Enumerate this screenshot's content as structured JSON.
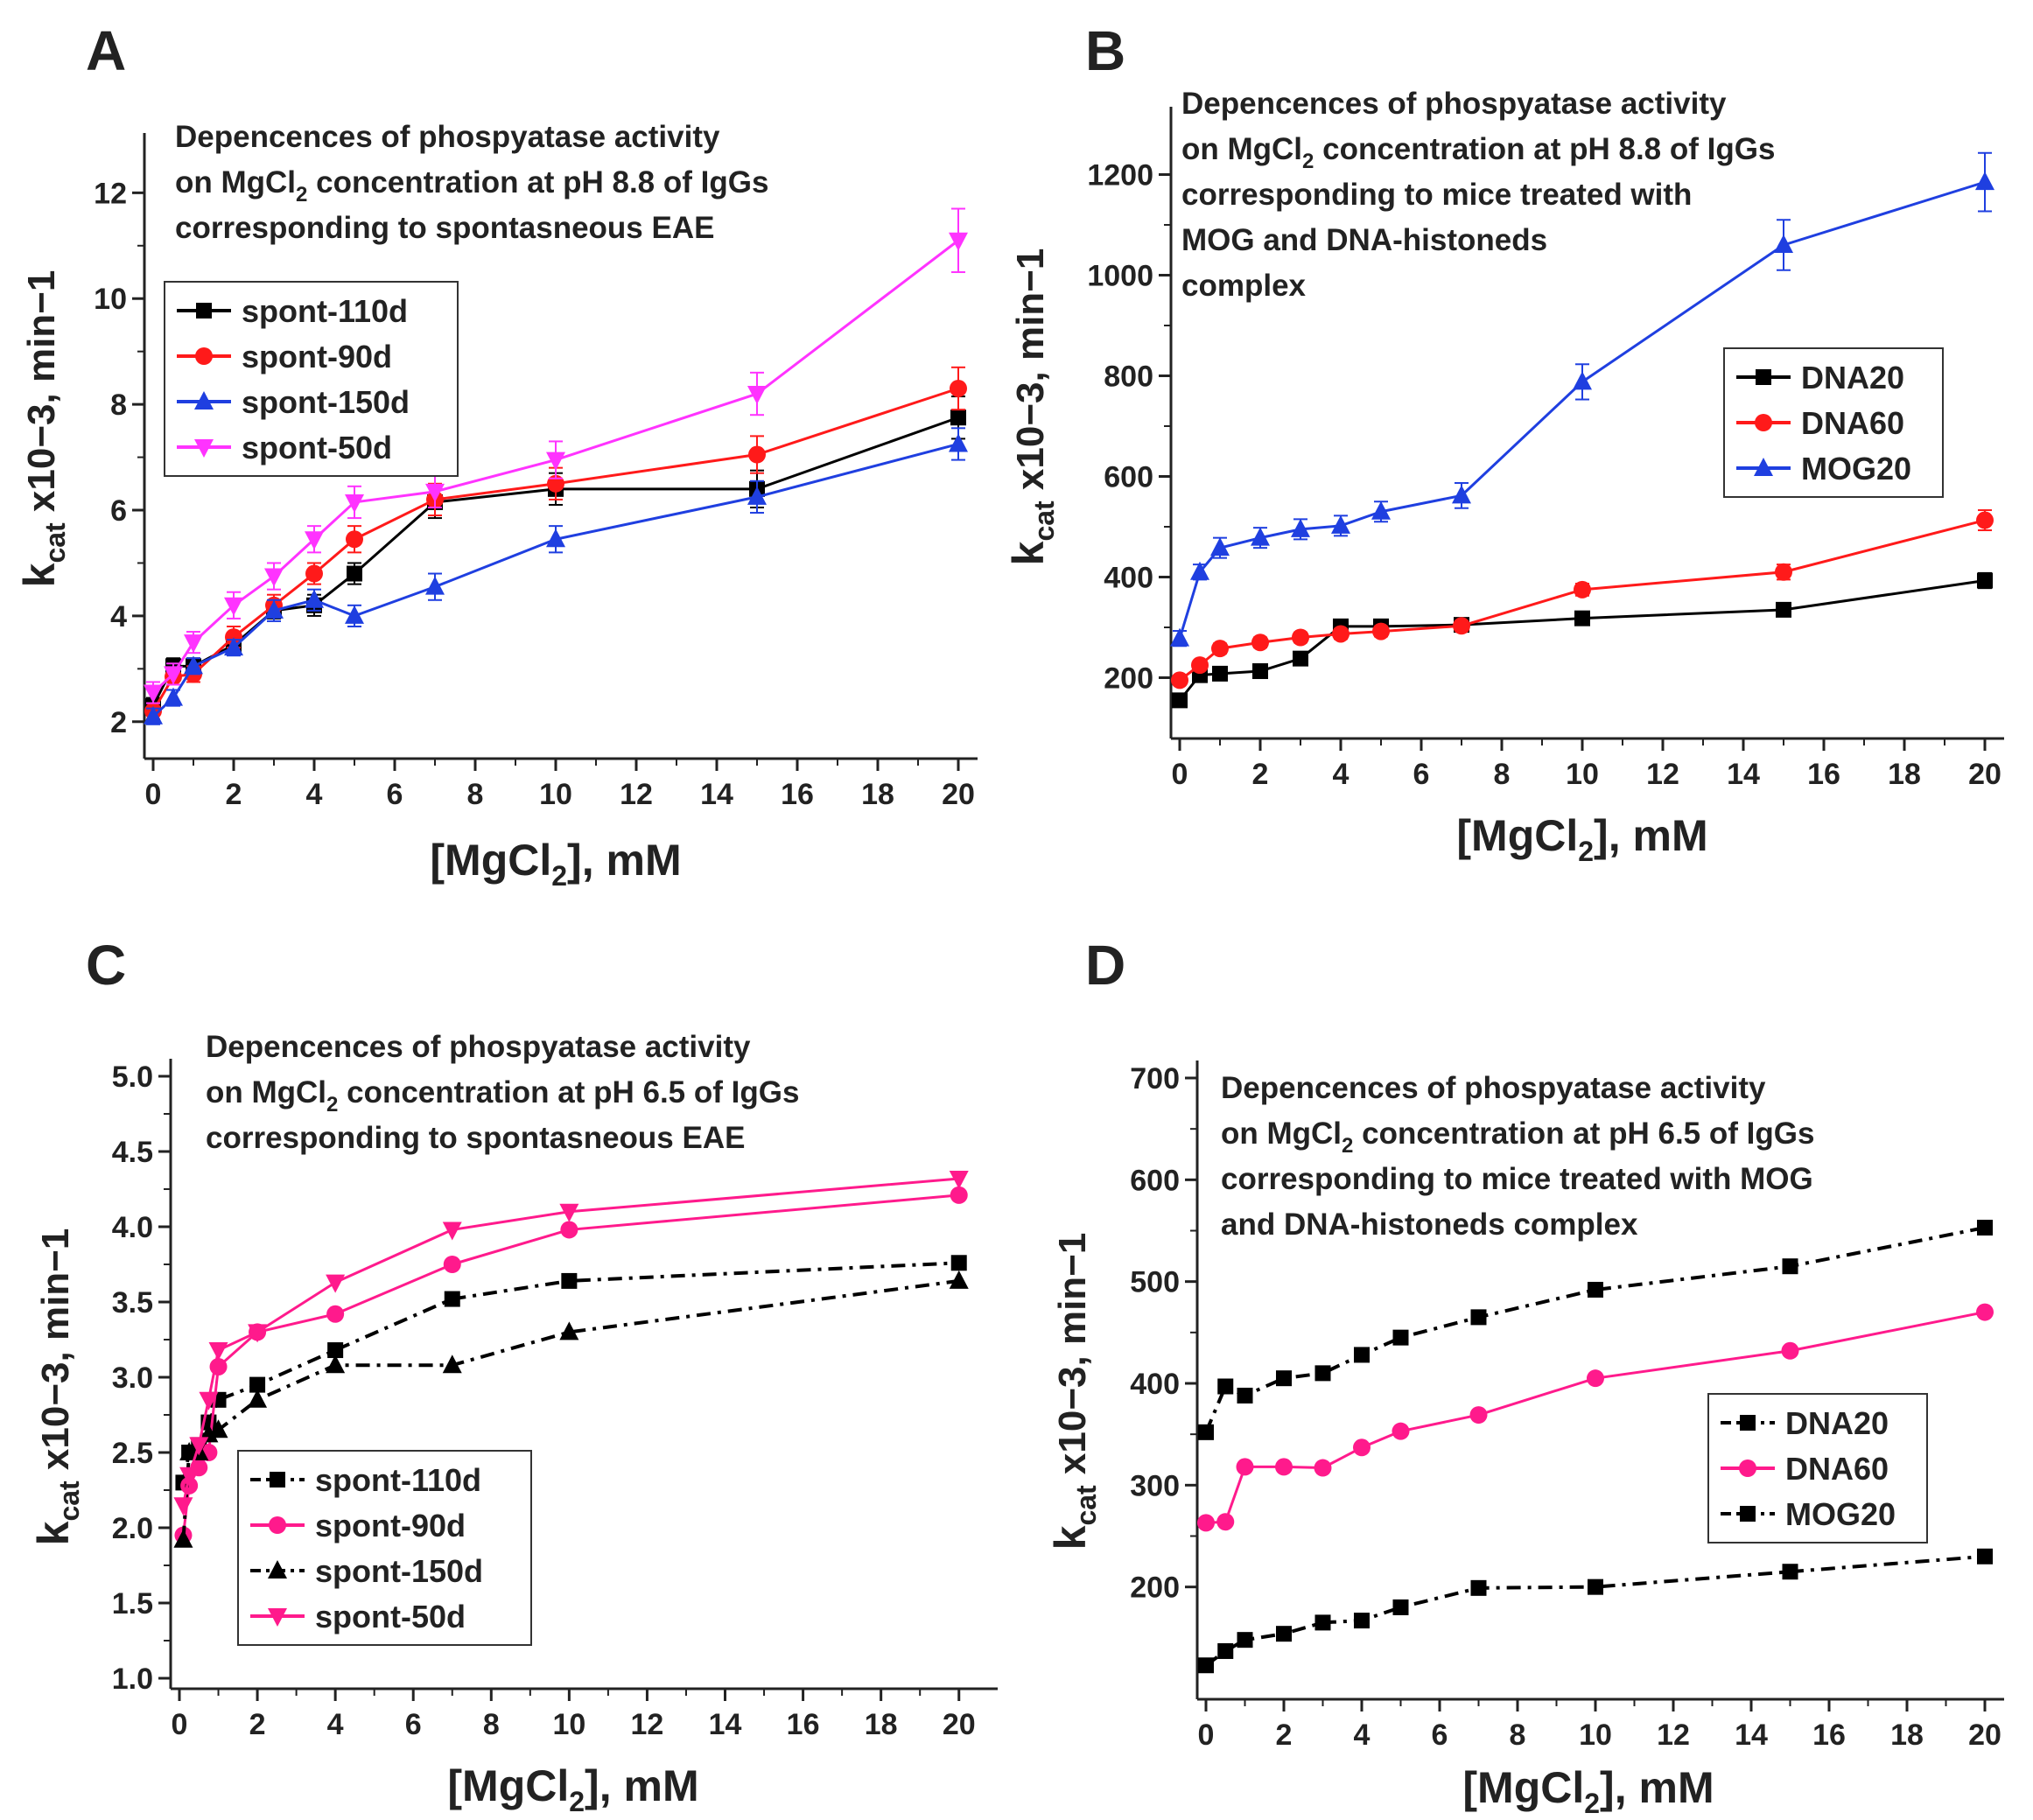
{
  "chart_data": [
    {
      "panel": "A",
      "type": "line",
      "annotation": [
        {
          "text": "Depencences of phospyatase activity"
        },
        {
          "text": "on MgCl",
          "sub": "2",
          "rest": " concentration at pH 8.8 of IgGs"
        },
        {
          "text": "corresponding to spontasneous EAE"
        }
      ],
      "xlabel": {
        "main": "[MgCl",
        "sub": "2",
        "rest": "], mM"
      },
      "ylabel": {
        "k": "k",
        "ksub": "cat",
        "rest": " x10−3, min−1"
      },
      "x_range": [
        0,
        20
      ],
      "y_range": [
        1.5,
        12.8
      ],
      "x_ticks": [
        0,
        2,
        4,
        6,
        8,
        10,
        12,
        14,
        16,
        18,
        20
      ],
      "y_ticks": [
        2,
        4,
        6,
        8,
        10,
        12
      ],
      "x": [
        0,
        0.5,
        1,
        2,
        3,
        4,
        5,
        7,
        10,
        15,
        20
      ],
      "series": [
        {
          "name": "spont-110d",
          "color": "#000000",
          "marker": "square",
          "values": [
            2.3,
            3.05,
            3.05,
            3.45,
            4.1,
            4.2,
            4.8,
            6.15,
            6.4,
            6.4,
            7.75
          ],
          "errors": [
            0.15,
            0.15,
            0.15,
            0.15,
            0.15,
            0.2,
            0.2,
            0.3,
            0.3,
            0.35,
            0.4
          ]
        },
        {
          "name": "spont-90d",
          "color": "#ff1a1a",
          "marker": "circle",
          "values": [
            2.2,
            2.85,
            2.9,
            3.6,
            4.2,
            4.8,
            5.45,
            6.2,
            6.5,
            7.05,
            8.3
          ],
          "errors": [
            0.15,
            0.15,
            0.15,
            0.2,
            0.2,
            0.2,
            0.25,
            0.3,
            0.3,
            0.35,
            0.4
          ]
        },
        {
          "name": "spont-150d",
          "color": "#1f3fe0",
          "marker": "triangle-up",
          "values": [
            2.1,
            2.45,
            3.05,
            3.4,
            4.1,
            4.3,
            4.0,
            4.55,
            5.45,
            6.25,
            7.25
          ],
          "errors": [
            0.15,
            0.15,
            0.15,
            0.15,
            0.2,
            0.2,
            0.2,
            0.25,
            0.25,
            0.3,
            0.3
          ]
        },
        {
          "name": "spont-50d",
          "color": "#ff33ff",
          "marker": "triangle-down",
          "values": [
            2.55,
            2.9,
            3.5,
            4.2,
            4.75,
            5.45,
            6.15,
            6.35,
            6.95,
            8.2,
            11.1
          ],
          "errors": [
            0.2,
            0.2,
            0.2,
            0.25,
            0.25,
            0.25,
            0.3,
            0.3,
            0.35,
            0.4,
            0.6
          ]
        }
      ],
      "legend": "left, below annotation"
    },
    {
      "panel": "B",
      "type": "line",
      "annotation": [
        {
          "text": "Depencences of phospyatase activity"
        },
        {
          "text": "on MgCl",
          "sub": "2",
          "rest": " concentration at pH 8.8 of IgGs"
        },
        {
          "text": "corresponding to mice treated with"
        },
        {
          "text": "MOG and DNA-histoneds"
        },
        {
          "text": "complex"
        }
      ],
      "xlabel": {
        "main": "[MgCl",
        "sub": "2",
        "rest": "], mM"
      },
      "ylabel": {
        "k": "k",
        "ksub": "cat",
        "rest": " x10−3, min−1"
      },
      "x_range": [
        0,
        20
      ],
      "y_range": [
        100,
        1300
      ],
      "x_ticks": [
        0,
        2,
        4,
        6,
        8,
        10,
        12,
        14,
        16,
        18,
        20
      ],
      "y_ticks": [
        200,
        400,
        600,
        800,
        1000,
        1200
      ],
      "x": [
        0,
        0.5,
        1,
        2,
        3,
        4,
        5,
        7,
        10,
        15,
        20
      ],
      "series": [
        {
          "name": "DNA20",
          "color": "#000000",
          "marker": "square",
          "values": [
            155,
            205,
            208,
            213,
            238,
            302,
            302,
            305,
            318,
            335,
            393
          ],
          "errors": [
            8,
            8,
            8,
            8,
            10,
            10,
            10,
            10,
            10,
            12,
            15
          ]
        },
        {
          "name": "DNA60",
          "color": "#ff1a1a",
          "marker": "circle",
          "values": [
            195,
            225,
            258,
            270,
            280,
            287,
            292,
            303,
            375,
            410,
            513
          ],
          "errors": [
            8,
            8,
            10,
            10,
            10,
            10,
            10,
            10,
            12,
            15,
            20
          ]
        },
        {
          "name": "MOG20",
          "color": "#1f3fe0",
          "marker": "triangle-up",
          "values": [
            278,
            410,
            458,
            478,
            495,
            502,
            530,
            562,
            788,
            1060,
            1185
          ],
          "errors": [
            15,
            15,
            20,
            20,
            20,
            20,
            20,
            25,
            35,
            50,
            58
          ]
        }
      ],
      "legend": "right, middle"
    },
    {
      "panel": "C",
      "type": "line",
      "annotation": [
        {
          "text": "Depencences of phospyatase activity"
        },
        {
          "text": "on MgCl",
          "sub": "2",
          "rest": " concentration at pH 6.5 of IgGs"
        },
        {
          "text": "corresponding to spontasneous EAE"
        }
      ],
      "xlabel": {
        "main": "[MgCl",
        "sub": "2",
        "rest": "], mM"
      },
      "ylabel": {
        "k": "k",
        "ksub": "cat",
        "rest": " x10−3, min−1"
      },
      "x_range": [
        0,
        20.5
      ],
      "y_range": [
        1.0,
        5.0
      ],
      "x_ticks": [
        0,
        2,
        4,
        6,
        8,
        10,
        12,
        14,
        16,
        18,
        20
      ],
      "y_ticks": [
        1.0,
        1.5,
        2.0,
        2.5,
        3.0,
        3.5,
        4.0,
        4.5,
        5.0
      ],
      "y_tick_labels": [
        "1.0",
        "1.5",
        "2.0",
        "2.5",
        "3.0",
        "3.5",
        "4.0",
        "4.5",
        "5.0"
      ],
      "x": [
        0.1,
        0.25,
        0.5,
        0.75,
        1,
        2,
        4,
        7,
        10,
        20
      ],
      "series": [
        {
          "name": "spont-110d",
          "color": "#000000",
          "marker": "square",
          "dash": true,
          "values": [
            2.3,
            2.5,
            2.55,
            2.7,
            2.85,
            2.95,
            3.18,
            3.52,
            3.64,
            3.76
          ]
        },
        {
          "name": "spont-90d",
          "color": "#ff1a8c",
          "marker": "circle",
          "dash": false,
          "values": [
            1.95,
            2.28,
            2.4,
            2.5,
            3.07,
            3.3,
            3.42,
            3.75,
            3.98,
            4.21
          ]
        },
        {
          "name": "spont-150d",
          "color": "#000000",
          "marker": "triangle-up",
          "dash": true,
          "values": [
            1.92,
            2.5,
            2.5,
            2.62,
            2.65,
            2.85,
            3.08,
            3.08,
            3.3,
            3.64
          ]
        },
        {
          "name": "spont-50d",
          "color": "#ff1a8c",
          "marker": "triangle-down",
          "dash": false,
          "values": [
            2.15,
            2.35,
            2.55,
            2.85,
            3.18,
            3.3,
            3.63,
            3.98,
            4.1,
            4.32
          ]
        }
      ],
      "legend": "bottom-left"
    },
    {
      "panel": "D",
      "type": "line",
      "annotation": [
        {
          "text": "Depencences of phospyatase activity"
        },
        {
          "text": "on MgCl",
          "sub": "2",
          "rest": " concentration at pH 6.5 of IgGs"
        },
        {
          "text": "corresponding to mice treated with MOG"
        },
        {
          "text": "and DNA-histoneds complex"
        }
      ],
      "xlabel": {
        "main": "[MgCl",
        "sub": "2",
        "rest": "], mM"
      },
      "ylabel": {
        "k": "k",
        "ksub": "cat",
        "rest": " x10−3, min−1"
      },
      "x_range": [
        0,
        20
      ],
      "y_range": [
        100,
        700
      ],
      "x_ticks": [
        0,
        2,
        4,
        6,
        8,
        10,
        12,
        14,
        16,
        18,
        20
      ],
      "y_ticks": [
        200,
        300,
        400,
        500,
        600,
        700
      ],
      "x": [
        0,
        0.5,
        1,
        2,
        3,
        4,
        5,
        7,
        10,
        15,
        20
      ],
      "series": [
        {
          "name": "DNA20",
          "color": "#000000",
          "marker": "square",
          "dash": true,
          "values": [
            352,
            397,
            388,
            405,
            410,
            428,
            445,
            465,
            492,
            515,
            553
          ]
        },
        {
          "name": "DNA60",
          "color": "#ff1a8c",
          "marker": "circle",
          "dash": false,
          "values": [
            263,
            264,
            318,
            318,
            317,
            337,
            353,
            369,
            405,
            432,
            470
          ]
        },
        {
          "name": "MOG20",
          "color": "#000000",
          "marker": "square",
          "dash": true,
          "values": [
            123,
            137,
            148,
            154,
            165,
            167,
            180,
            199,
            200,
            215,
            230
          ]
        }
      ],
      "legend": "right, middle"
    }
  ]
}
